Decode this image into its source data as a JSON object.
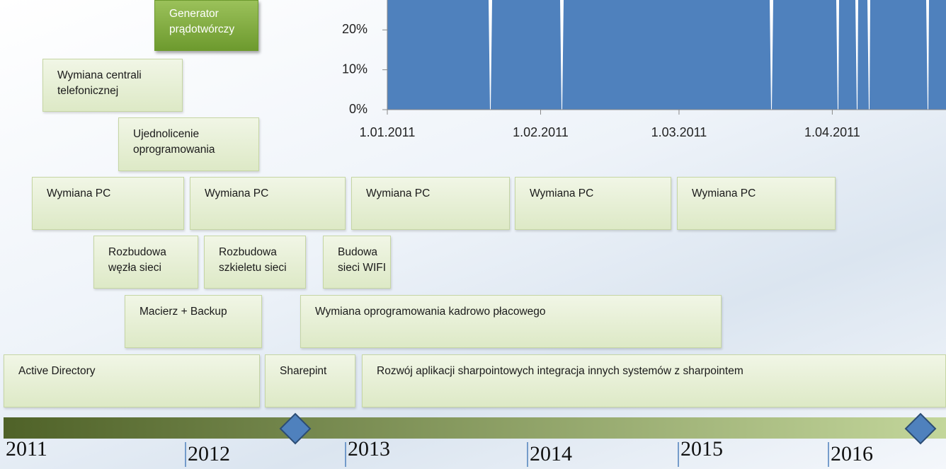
{
  "chart": {
    "ylim": [
      0,
      27.5
    ],
    "yticks": [
      {
        "value": 0,
        "label": "0%"
      },
      {
        "value": 10,
        "label": "10%"
      },
      {
        "value": 20,
        "label": "20%"
      }
    ],
    "xlim": [
      "2011-01-01",
      "2011-04-24"
    ],
    "xticks": [
      {
        "value": "2011-01-01",
        "label": "1.01.2011"
      },
      {
        "value": "2011-02-01",
        "label": "1.02.2011"
      },
      {
        "value": "2011-03-01",
        "label": "1.03.2011"
      },
      {
        "value": "2011-04-01",
        "label": "1.04.2011"
      }
    ]
  },
  "boxes": [
    {
      "label": "Generator\nprądotwórczy"
    },
    {
      "label": "Wymiana centrali\ntelefonicznej"
    },
    {
      "label": "Ujednolicenie\noprogramowania"
    },
    {
      "label": "Wymiana PC"
    },
    {
      "label": "Wymiana PC"
    },
    {
      "label": "Wymiana PC"
    },
    {
      "label": "Wymiana PC"
    },
    {
      "label": "Wymiana PC"
    },
    {
      "label": "Rozbudowa\nwęzła sieci"
    },
    {
      "label": "Rozbudowa\nszkieletu sieci"
    },
    {
      "label": "Budowa\nsieci WIFI"
    },
    {
      "label": "Macierz + Backup"
    },
    {
      "label": "Wymiana oprogramowania kadrowo płacowego"
    },
    {
      "label": "Active Directory"
    },
    {
      "label": "Sharepint"
    },
    {
      "label": "Rozwój aplikacji sharpointowych integracja innych systemów z sharpointem"
    }
  ],
  "timeline": {
    "years": [
      "2011",
      "2012",
      "2013",
      "2014",
      "2015",
      "2016"
    ]
  }
}
